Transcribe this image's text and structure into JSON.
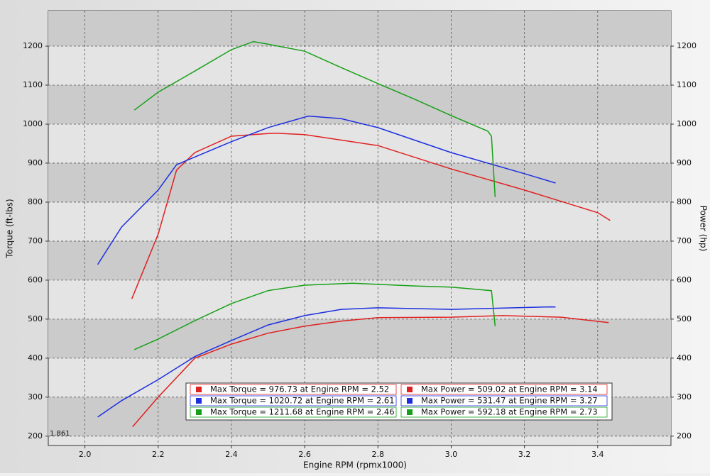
{
  "chart_data": {
    "type": "line",
    "xlabel": "Engine RPM (rpmx1000)",
    "ylabel": "Torque (ft-lbs)",
    "y2label": "Power (hp)",
    "annotation": "1.861",
    "xlim": [
      1.9,
      3.6
    ],
    "xticks": [
      {
        "value": 2,
        "label": "2.0"
      },
      {
        "value": 2.2,
        "label": "2.2"
      },
      {
        "value": 2.4,
        "label": "2.4"
      },
      {
        "value": 2.6,
        "label": "2.6"
      },
      {
        "value": 2.8,
        "label": "2.8"
      },
      {
        "value": 3,
        "label": "3.0"
      },
      {
        "value": 3.2,
        "label": "3.2"
      },
      {
        "value": 3.4,
        "label": "3.4"
      }
    ],
    "ylim": [
      176,
      1291
    ],
    "yticks": [
      200,
      300,
      400,
      500,
      600,
      700,
      800,
      900,
      1000,
      1100,
      1200
    ],
    "y2lim": [
      176,
      1291
    ],
    "y2ticks": [
      200,
      300,
      400,
      500,
      600,
      700,
      800,
      900,
      1000,
      1100,
      1200
    ],
    "grid": true,
    "series": [
      {
        "name": "Max Torque = 976.73 at Engine RPM = 2.52",
        "color": "#e02020",
        "axis": "y",
        "x": [
          2.128,
          2.2,
          2.25,
          2.3,
          2.4,
          2.5,
          2.52,
          2.6,
          2.8,
          3.0,
          3.2,
          3.4,
          3.434
        ],
        "values": [
          552,
          718,
          882,
          927,
          969,
          976,
          976.73,
          973,
          945,
          885,
          831,
          773,
          753
        ]
      },
      {
        "name": "Max Torque = 1020.72 at Engine RPM = 2.61",
        "color": "#1c2ee0",
        "axis": "y",
        "x": [
          2.035,
          2.1,
          2.2,
          2.25,
          2.4,
          2.5,
          2.61,
          2.7,
          2.8,
          3.0,
          3.2,
          3.285
        ],
        "values": [
          640,
          736,
          831,
          896,
          955,
          991,
          1020.72,
          1014,
          991,
          927,
          873,
          849
        ]
      },
      {
        "name": "Max Torque = 1211.68 at Engine RPM = 2.46",
        "color": "#18a018",
        "axis": "y",
        "x": [
          2.135,
          2.2,
          2.3,
          2.4,
          2.46,
          2.5,
          2.6,
          2.7,
          2.8,
          2.9,
          3.0,
          3.1,
          3.11,
          3.12
        ],
        "values": [
          1036,
          1082,
          1136,
          1191,
          1211.68,
          1205,
          1187,
          1145,
          1104,
          1064,
          1022,
          982,
          969,
          813
        ]
      },
      {
        "name": "Max Power = 509.02 at Engine RPM = 3.14",
        "color": "#e02020",
        "axis": "y2",
        "x": [
          2.13,
          2.2,
          2.3,
          2.4,
          2.5,
          2.6,
          2.7,
          2.8,
          3.0,
          3.14,
          3.3,
          3.43
        ],
        "values": [
          224,
          300,
          400,
          436,
          464,
          482,
          495,
          504,
          505,
          509.02,
          505,
          491
        ]
      },
      {
        "name": "Max Power = 531.47 at Engine RPM = 3.27",
        "color": "#1c2ee0",
        "axis": "y2",
        "x": [
          2.035,
          2.1,
          2.2,
          2.3,
          2.4,
          2.5,
          2.6,
          2.7,
          2.8,
          3.0,
          3.27,
          3.285
        ],
        "values": [
          249,
          291,
          345,
          404,
          445,
          485,
          509,
          525,
          529,
          525,
          531.47,
          531
        ]
      },
      {
        "name": "Max Power = 592.18 at Engine RPM = 2.73",
        "color": "#18a018",
        "axis": "y2",
        "x": [
          2.135,
          2.2,
          2.3,
          2.4,
          2.5,
          2.6,
          2.73,
          2.9,
          3.0,
          3.11,
          3.12
        ],
        "values": [
          422,
          449,
          496,
          540,
          573,
          587,
          592.18,
          585,
          582,
          573,
          482
        ]
      }
    ]
  }
}
